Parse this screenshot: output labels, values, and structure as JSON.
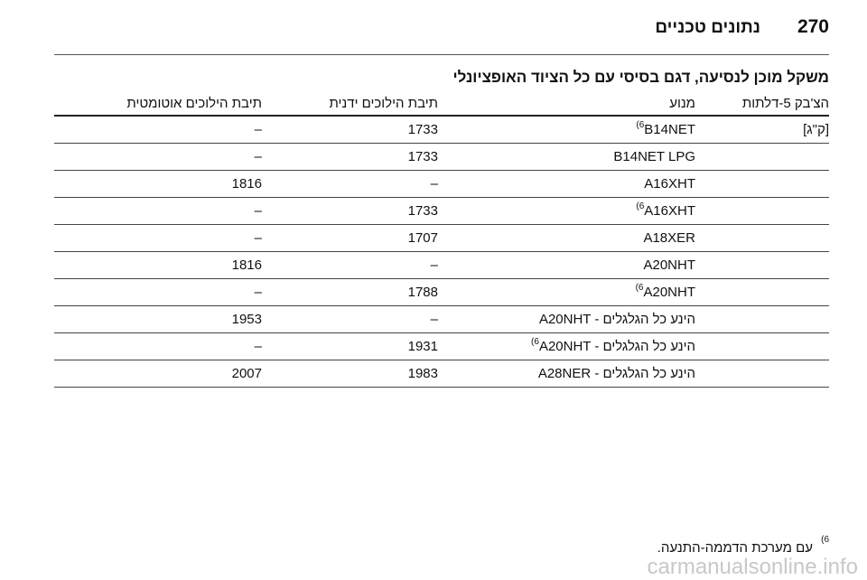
{
  "header": {
    "page_number": "270",
    "title": "נתונים טכניים"
  },
  "section_title": "משקל מוכן לנסיעה, דגם בסיסי עם כל הציוד האופציונלי",
  "table": {
    "headers": [
      "הצ'בק 5-דלתות",
      "מנוע",
      "תיבת הילוכים ידנית",
      "תיבת הילוכים אוטומטית"
    ],
    "unit": "[ק\"ג]",
    "rows": [
      {
        "engine": "B14NET",
        "note": "6)",
        "manual": "1733",
        "automatic": "–"
      },
      {
        "engine": "B14NET LPG",
        "manual": "1733",
        "automatic": "–"
      },
      {
        "engine": "A16XHT",
        "manual": "–",
        "automatic": "1816"
      },
      {
        "engine": "A16XHT",
        "note": "6)",
        "manual": "1733",
        "automatic": "–"
      },
      {
        "engine": "A18XER",
        "manual": "1707",
        "automatic": "–"
      },
      {
        "engine": "A20NHT",
        "manual": "–",
        "automatic": "1816"
      },
      {
        "engine": "A20NHT",
        "note": "6)",
        "manual": "1788",
        "automatic": "–"
      },
      {
        "engine": "A20NHT - הינע כל הגלגלים",
        "manual": "–",
        "automatic": "1953"
      },
      {
        "engine": "A20NHT - הינע כל הגלגלים",
        "note": "6)",
        "manual": "1931",
        "automatic": "–"
      },
      {
        "engine": "A28NER - הינע כל הגלגלים",
        "manual": "1983",
        "automatic": "2007"
      }
    ]
  },
  "footnote": {
    "mark": "6)",
    "text": "עם מערכת הדממה-התנעה."
  },
  "watermark": "carmanualsonline.info"
}
